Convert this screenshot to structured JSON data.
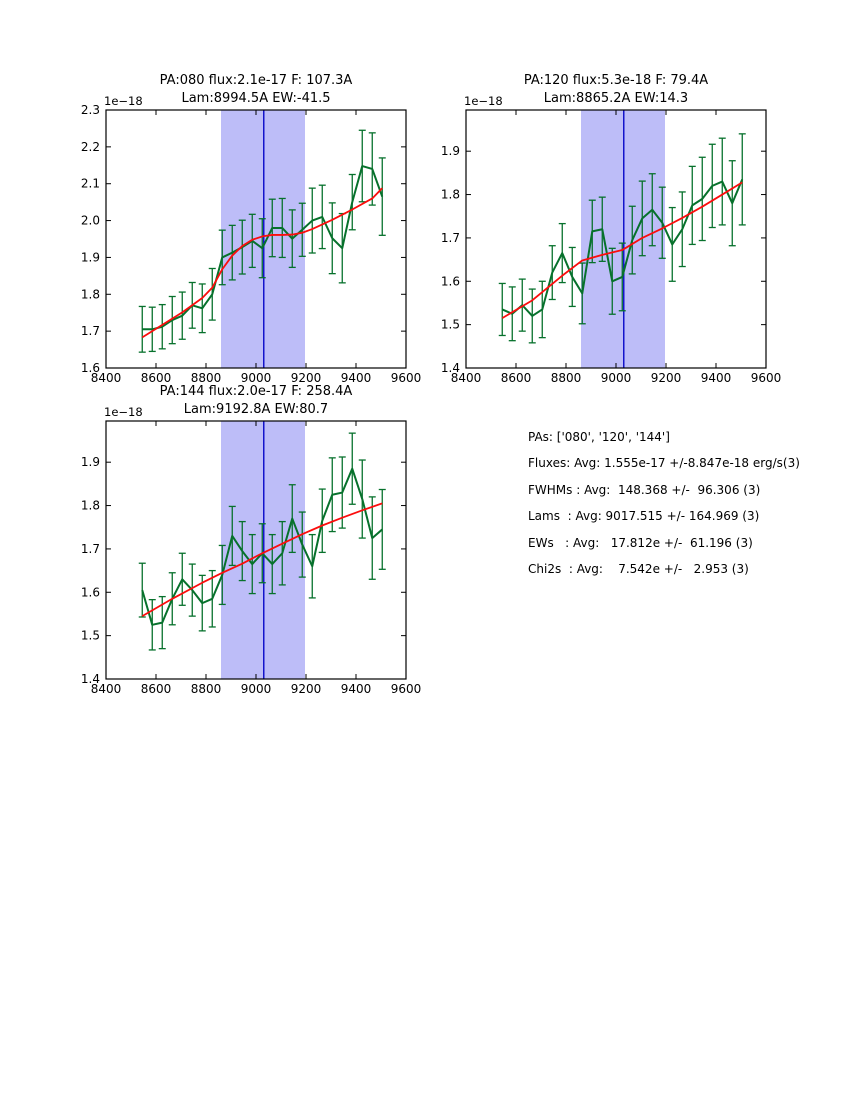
{
  "colors": {
    "data_line": "#07712c",
    "fit_line": "#fb0d0d",
    "band_fill": "#bdbdf8",
    "vline": "#1313cc",
    "axis": "#000000",
    "text": "#000000",
    "background": "#ffffff"
  },
  "chart_data": [
    {
      "type": "line",
      "name": "pa080",
      "title_line1": "PA:080 flux:2.1e-17 F: 107.3A",
      "title_line2": "Lam:8994.5A EW:-41.5",
      "offset_label": "1e−18",
      "xlim": [
        8400,
        9600
      ],
      "ylim": [
        1.6,
        2.3
      ],
      "xticks": [
        8400,
        8600,
        8800,
        9000,
        9200,
        9400,
        9600
      ],
      "yticks": [
        1.6,
        1.7,
        1.8,
        1.9,
        2.0,
        2.1,
        2.2,
        2.3
      ],
      "grid": false,
      "legend": false,
      "band": [
        8860,
        9196
      ],
      "vline": 9031,
      "series": {
        "x": [
          8545,
          8585,
          8625,
          8665,
          8705,
          8745,
          8785,
          8825,
          8865,
          8905,
          8945,
          8985,
          9025,
          9065,
          9105,
          9145,
          9185,
          9225,
          9265,
          9305,
          9345,
          9385,
          9425,
          9465,
          9505
        ],
        "y": [
          1.705,
          1.705,
          1.712,
          1.73,
          1.742,
          1.77,
          1.762,
          1.8,
          1.9,
          1.913,
          1.928,
          1.945,
          1.925,
          1.98,
          1.98,
          1.951,
          1.975,
          2.0,
          2.01,
          1.952,
          1.925,
          2.05,
          2.148,
          2.14,
          2.065
        ],
        "yerr": [
          0.062,
          0.06,
          0.06,
          0.064,
          0.064,
          0.062,
          0.066,
          0.07,
          0.074,
          0.074,
          0.073,
          0.072,
          0.08,
          0.078,
          0.08,
          0.078,
          0.072,
          0.088,
          0.086,
          0.096,
          0.094,
          0.075,
          0.097,
          0.098,
          0.105
        ]
      },
      "fit": {
        "x": [
          8545,
          8625,
          8705,
          8785,
          8825,
          8865,
          8905,
          8945,
          8985,
          9025,
          9065,
          9105,
          9145,
          9185,
          9225,
          9305,
          9385,
          9465,
          9505
        ],
        "y": [
          1.683,
          1.717,
          1.751,
          1.79,
          1.818,
          1.868,
          1.905,
          1.931,
          1.948,
          1.957,
          1.961,
          1.961,
          1.962,
          1.967,
          1.977,
          2.002,
          2.03,
          2.06,
          2.088
        ]
      }
    },
    {
      "type": "line",
      "name": "pa120",
      "title_line1": "PA:120 flux:5.3e-18 F: 79.4A",
      "title_line2": "Lam:8865.2A EW:14.3",
      "offset_label": "1e−18",
      "xlim": [
        8400,
        9600
      ],
      "ylim": [
        1.4,
        1.995
      ],
      "xticks": [
        8400,
        8600,
        8800,
        9000,
        9200,
        9400,
        9600
      ],
      "yticks": [
        1.4,
        1.5,
        1.6,
        1.7,
        1.8,
        1.9
      ],
      "grid": false,
      "legend": false,
      "band": [
        8860,
        9196
      ],
      "vline": 9031,
      "series": {
        "x": [
          8545,
          8585,
          8625,
          8665,
          8705,
          8745,
          8785,
          8825,
          8865,
          8905,
          8945,
          8985,
          9025,
          9065,
          9105,
          9145,
          9185,
          9225,
          9265,
          9305,
          9345,
          9385,
          9425,
          9465,
          9505
        ],
        "y": [
          1.535,
          1.525,
          1.545,
          1.52,
          1.535,
          1.62,
          1.665,
          1.61,
          1.572,
          1.715,
          1.72,
          1.6,
          1.61,
          1.695,
          1.745,
          1.765,
          1.735,
          1.685,
          1.72,
          1.775,
          1.79,
          1.82,
          1.83,
          1.78,
          1.835
        ],
        "yerr": [
          0.06,
          0.062,
          0.06,
          0.062,
          0.065,
          0.062,
          0.068,
          0.068,
          0.07,
          0.072,
          0.074,
          0.076,
          0.078,
          0.078,
          0.086,
          0.083,
          0.082,
          0.085,
          0.086,
          0.09,
          0.096,
          0.096,
          0.1,
          0.098,
          0.105
        ]
      },
      "fit": {
        "x": [
          8545,
          8665,
          8785,
          8865,
          8945,
          9025,
          9105,
          9185,
          9265,
          9345,
          9425,
          9505
        ],
        "y": [
          1.515,
          1.556,
          1.613,
          1.648,
          1.661,
          1.672,
          1.7,
          1.722,
          1.746,
          1.772,
          1.8,
          1.828
        ]
      }
    },
    {
      "type": "line",
      "name": "pa144",
      "title_line1": "PA:144 flux:2.0e-17 F: 258.4A",
      "title_line2": "Lam:9192.8A EW:80.7",
      "offset_label": "1e−18",
      "xlim": [
        8400,
        9600
      ],
      "ylim": [
        1.4,
        1.995
      ],
      "xticks": [
        8400,
        8600,
        8800,
        9000,
        9200,
        9400,
        9600
      ],
      "yticks": [
        1.4,
        1.5,
        1.6,
        1.7,
        1.8,
        1.9
      ],
      "grid": false,
      "legend": false,
      "band": [
        8860,
        9196
      ],
      "vline": 9031,
      "series": {
        "x": [
          8545,
          8585,
          8625,
          8665,
          8705,
          8745,
          8785,
          8825,
          8865,
          8905,
          8945,
          8985,
          9025,
          9065,
          9105,
          9145,
          9185,
          9225,
          9265,
          9305,
          9345,
          9385,
          9425,
          9465,
          9505
        ],
        "y": [
          1.605,
          1.525,
          1.53,
          1.585,
          1.63,
          1.605,
          1.575,
          1.585,
          1.64,
          1.73,
          1.695,
          1.665,
          1.69,
          1.665,
          1.69,
          1.77,
          1.71,
          1.66,
          1.765,
          1.825,
          1.83,
          1.885,
          1.815,
          1.725,
          1.745
        ],
        "yerr": [
          0.062,
          0.058,
          0.06,
          0.06,
          0.06,
          0.06,
          0.064,
          0.065,
          0.068,
          0.068,
          0.068,
          0.068,
          0.068,
          0.068,
          0.073,
          0.078,
          0.075,
          0.073,
          0.073,
          0.085,
          0.082,
          0.082,
          0.09,
          0.095,
          0.092
        ]
      },
      "fit": {
        "x": [
          8545,
          8665,
          8785,
          8865,
          8945,
          9025,
          9105,
          9185,
          9265,
          9345,
          9425,
          9505
        ],
        "y": [
          1.545,
          1.585,
          1.622,
          1.645,
          1.666,
          1.69,
          1.712,
          1.734,
          1.754,
          1.772,
          1.789,
          1.805
        ]
      }
    }
  ],
  "stats_panel": {
    "lines": [
      "PAs: ['080', '120', '144']",
      "Fluxes: Avg: 1.555e-17 +/-8.847e-18 erg/s(3)",
      "FWHMs : Avg:  148.368 +/-  96.306 (3)",
      "Lams  : Avg: 9017.515 +/- 164.969 (3)",
      "EWs   : Avg:   17.812e +/-  61.196 (3)",
      "Chi2s  : Avg:    7.542e +/-   2.953 (3)"
    ]
  }
}
